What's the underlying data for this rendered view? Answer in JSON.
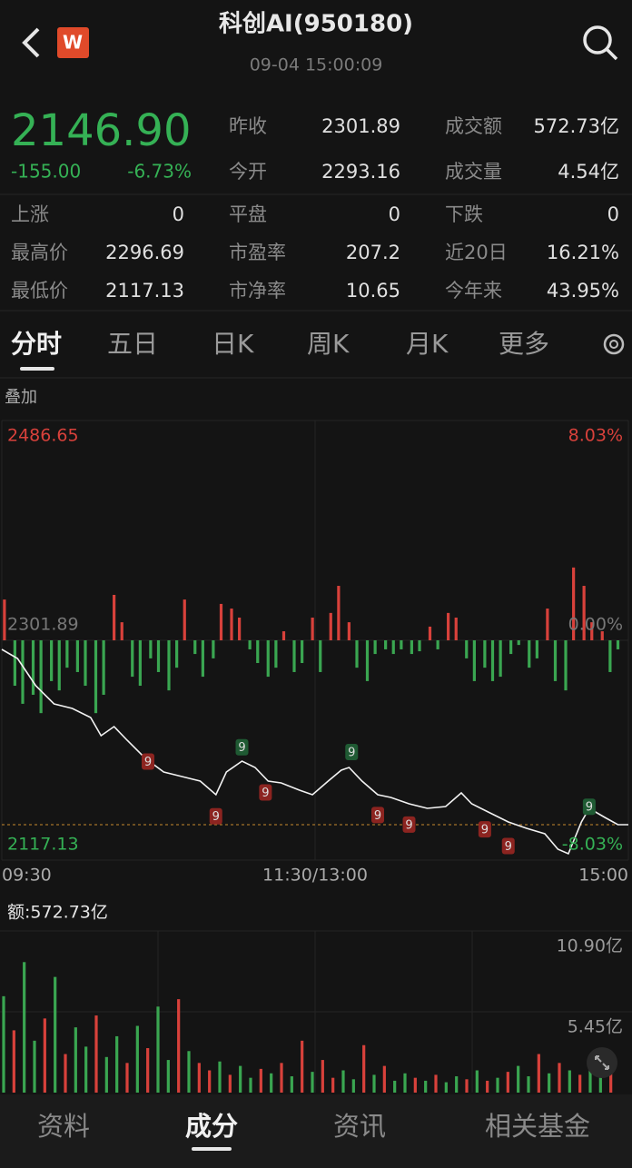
{
  "header": {
    "logo": "W",
    "title": "科创AI(950180)",
    "time": "09-04 15:00:09"
  },
  "quote": {
    "price": "2146.90",
    "change": "-155.00",
    "change_pct": "-6.73%",
    "stats": [
      [
        {
          "label": "昨收",
          "value": "2301.89"
        },
        {
          "label": "成交额",
          "value": "572.73亿"
        }
      ],
      [
        {
          "label": "今开",
          "value": "2293.16"
        },
        {
          "label": "成交量",
          "value": "4.54亿"
        }
      ],
      [
        {
          "label": "上涨",
          "value": "0"
        },
        {
          "label": "平盘",
          "value": "0"
        },
        {
          "label": "下跌",
          "value": "0"
        }
      ],
      [
        {
          "label": "最高价",
          "value": "2296.69"
        },
        {
          "label": "市盈率",
          "value": "207.2"
        },
        {
          "label": "近20日",
          "value": "16.21%"
        }
      ],
      [
        {
          "label": "最低价",
          "value": "2117.13"
        },
        {
          "label": "市净率",
          "value": "10.65"
        },
        {
          "label": "今年来",
          "value": "43.95%"
        }
      ]
    ]
  },
  "tabs": {
    "items": [
      "分时",
      "五日",
      "日K",
      "周K",
      "月K",
      "更多"
    ],
    "active": "分时"
  },
  "overlay": "叠加",
  "chart_data": [
    {
      "type": "line",
      "x": [
        0,
        6,
        13,
        20,
        27,
        34,
        38,
        43,
        48,
        55,
        62,
        69,
        76,
        82,
        86,
        92,
        97,
        102,
        107,
        114,
        119,
        125,
        130,
        133,
        138,
        144,
        149,
        156,
        163,
        170,
        176,
        180,
        187,
        194,
        201,
        208,
        213,
        217,
        222,
        225,
        231,
        236,
        240
      ],
      "series": [
        {
          "color": "#f2f2f2",
          "values": [
            2294.26,
            2286.62,
            2263.72,
            2248.45,
            2244.63,
            2236.99,
            2221.72,
            2229.36,
            2217.91,
            2202.64,
            2191.18,
            2187.37,
            2183.55,
            2172.09,
            2191.18,
            2200.34,
            2195.0,
            2183.55,
            2182.02,
            2175.91,
            2172.09,
            2183.55,
            2192.71,
            2195.0,
            2183.55,
            2172.09,
            2169.8,
            2164.45,
            2160.63,
            2162.16,
            2173.62,
            2164.45,
            2156.82,
            2149.18,
            2143.84,
            2139.26,
            2126.28,
            2122.47,
            2149.18,
            2160.63,
            2153.0,
            2146.9,
            2146.9
          ]
        }
      ],
      "xlim": [
        0,
        240
      ],
      "xticks": [
        {
          "value": 0,
          "label": "09:30"
        },
        {
          "value": 120,
          "label": "11:30/13:00"
        },
        {
          "value": 240,
          "label": "15:00"
        }
      ],
      "ylim": [
        2117.13,
        2486.65
      ],
      "yticks": [
        2486.65,
        2301.89,
        2117.13
      ],
      "y2lim": [
        -8.03,
        8.03
      ],
      "y2ticks": [
        {
          "value": 8.03,
          "label": "8.03%"
        },
        {
          "value": 0,
          "label": "0.00%"
        },
        {
          "value": -8.03,
          "label": "-8.03%"
        }
      ],
      "annotations": [
        {
          "x": 56,
          "y": 2200,
          "label": "9",
          "color": "#8c2420"
        },
        {
          "x": 82,
          "y": 2154,
          "label": "9",
          "color": "#8c2420"
        },
        {
          "x": 101,
          "y": 2174,
          "label": "9",
          "color": "#8c2420"
        },
        {
          "x": 144,
          "y": 2155,
          "label": "9",
          "color": "#8c2420"
        },
        {
          "x": 156,
          "y": 2147,
          "label": "9",
          "color": "#8c2420"
        },
        {
          "x": 185,
          "y": 2143,
          "label": "9",
          "color": "#8c2420"
        },
        {
          "x": 194,
          "y": 2129,
          "label": "9",
          "color": "#8c2420"
        },
        {
          "x": 92,
          "y": 2212,
          "label": "9",
          "color": "#1f5a33"
        },
        {
          "x": 134,
          "y": 2208,
          "label": "9",
          "color": "#1f5a33"
        },
        {
          "x": 225,
          "y": 2162,
          "label": "9",
          "color": "#1f5a33"
        }
      ],
      "grid": true
    },
    {
      "type": "bar",
      "x": [
        1,
        5,
        8,
        12,
        15,
        19,
        22,
        25,
        29,
        32,
        36,
        39,
        43,
        46,
        50,
        53,
        57,
        60,
        64,
        67,
        70,
        74,
        77,
        81,
        84,
        88,
        91,
        95,
        98,
        102,
        105,
        108,
        112,
        115,
        119,
        122,
        126,
        129,
        133,
        136,
        140,
        143,
        147,
        150,
        153,
        157,
        160,
        164,
        167,
        171,
        174,
        178,
        181,
        185,
        188,
        191,
        195,
        198,
        202,
        205,
        209,
        212,
        216,
        219,
        223,
        226,
        230,
        233,
        236
      ],
      "values": [
        1.49,
        -1.66,
        -2.32,
        -1.99,
        -2.66,
        -1.49,
        -1.83,
        -1.0,
        -1.16,
        -1.66,
        -2.66,
        -1.99,
        1.66,
        0.66,
        -1.33,
        -1.66,
        -0.66,
        -1.16,
        -1.83,
        -1.0,
        1.49,
        -0.5,
        -1.33,
        -0.66,
        1.33,
        1.16,
        0.83,
        -0.33,
        -0.83,
        -1.33,
        -1.0,
        0.33,
        -1.16,
        -0.83,
        0.83,
        -1.16,
        1.0,
        1.99,
        0.66,
        -1.0,
        -1.49,
        -0.5,
        -0.33,
        -0.5,
        -0.33,
        -0.5,
        -0.4,
        0.5,
        -0.33,
        1.0,
        0.83,
        -0.66,
        -1.49,
        -1.0,
        -1.49,
        -1.33,
        -0.5,
        -0.17,
        -1.0,
        -0.66,
        1.16,
        -1.49,
        -1.83,
        2.66,
        1.99,
        0.66,
        0.33,
        -1.16,
        -0.33
      ],
      "xlim": [
        0,
        240
      ],
      "ylim": [
        -8.03,
        8.03
      ],
      "up_color": "#d8413b",
      "down_color": "#3aa651"
    },
    {
      "type": "bar",
      "title": "额:572.73亿",
      "x": [
        0,
        4,
        8,
        12,
        16,
        20,
        24,
        28,
        32,
        36,
        40,
        44,
        48,
        52,
        56,
        60,
        64,
        68,
        72,
        76,
        80,
        84,
        88,
        92,
        96,
        100,
        104,
        108,
        112,
        116,
        120,
        124,
        128,
        132,
        136,
        140,
        144,
        148,
        152,
        156,
        160,
        164,
        168,
        172,
        176,
        180,
        184,
        188,
        192,
        196,
        200,
        204,
        208,
        212,
        216,
        220,
        224,
        228,
        232,
        236
      ],
      "values": [
        6.5,
        4.2,
        8.8,
        3.5,
        5.0,
        7.8,
        2.6,
        4.4,
        3.1,
        5.2,
        2.4,
        3.8,
        2.0,
        4.5,
        3.0,
        5.8,
        2.2,
        6.3,
        2.8,
        2.0,
        1.5,
        2.1,
        1.2,
        1.8,
        1.0,
        1.6,
        1.3,
        2.0,
        1.1,
        3.5,
        1.4,
        2.2,
        1.0,
        1.5,
        0.9,
        3.2,
        1.2,
        1.8,
        0.8,
        1.3,
        1.0,
        0.8,
        1.2,
        0.7,
        1.1,
        0.9,
        1.5,
        0.8,
        1.0,
        1.4,
        1.8,
        1.1,
        2.6,
        1.3,
        2.0,
        1.5,
        1.2,
        2.3,
        3.0,
        2.4
      ],
      "colors": [
        "#3aa651",
        "#d8413b",
        "#3aa651",
        "#3aa651",
        "#d8413b",
        "#3aa651",
        "#d8413b",
        "#3aa651",
        "#3aa651",
        "#d8413b",
        "#3aa651",
        "#3aa651",
        "#d8413b",
        "#3aa651",
        "#d8413b",
        "#3aa651",
        "#3aa651",
        "#d8413b",
        "#3aa651",
        "#d8413b",
        "#d8413b",
        "#3aa651",
        "#d8413b",
        "#3aa651",
        "#3aa651",
        "#d8413b",
        "#3aa651",
        "#d8413b",
        "#3aa651",
        "#d8413b",
        "#3aa651",
        "#d8413b",
        "#d8413b",
        "#3aa651",
        "#3aa651",
        "#d8413b",
        "#3aa651",
        "#d8413b",
        "#3aa651",
        "#3aa651",
        "#d8413b",
        "#3aa651",
        "#d8413b",
        "#3aa651",
        "#3aa651",
        "#d8413b",
        "#3aa651",
        "#d8413b",
        "#3aa651",
        "#d8413b",
        "#3aa651",
        "#3aa651",
        "#d8413b",
        "#3aa651",
        "#d8413b",
        "#3aa651",
        "#d8413b",
        "#3aa651",
        "#3aa651",
        "#d8413b"
      ],
      "xlim": [
        0,
        240
      ],
      "ylim": [
        0,
        10.9
      ],
      "yticks": [
        {
          "value": 10.9,
          "label": "10.90亿"
        },
        {
          "value": 5.45,
          "label": "5.45亿"
        }
      ]
    }
  ],
  "nav": {
    "items": [
      "资料",
      "成分",
      "资讯",
      "相关基金"
    ],
    "active": "成分"
  }
}
